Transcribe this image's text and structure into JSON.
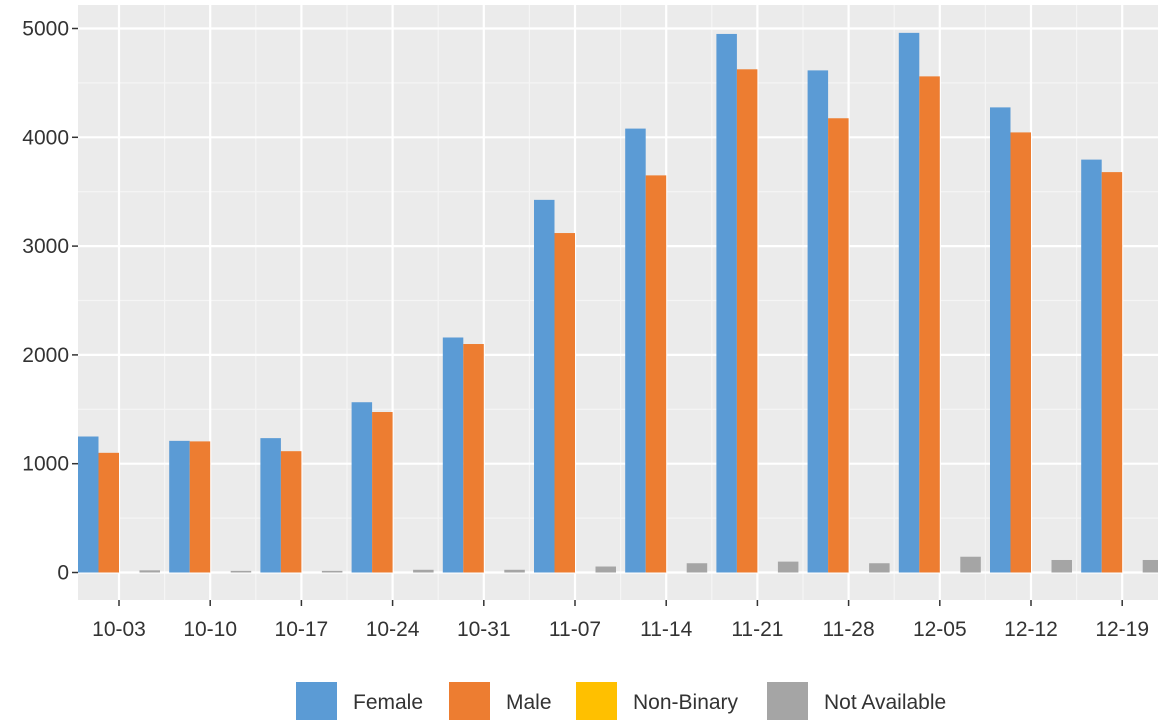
{
  "chart_data": {
    "type": "bar",
    "title": "",
    "xlabel": "",
    "ylabel": "",
    "categories": [
      "10-03",
      "10-10",
      "10-17",
      "10-24",
      "10-31",
      "11-07",
      "11-14",
      "11-21",
      "11-28",
      "12-05",
      "12-12",
      "12-19"
    ],
    "ylim": [
      -150,
      5200
    ],
    "yticks": [
      0,
      1000,
      2000,
      3000,
      4000,
      5000
    ],
    "ytick_labels": [
      "0",
      "1000",
      "2000",
      "3000",
      "4000",
      "5000"
    ],
    "grid": true,
    "legend_position": "bottom",
    "series": [
      {
        "name": "Female",
        "color": "#5B9BD5",
        "values": [
          1250,
          1210,
          1235,
          1565,
          2160,
          3425,
          4080,
          4950,
          4615,
          4960,
          4275,
          3795
        ]
      },
      {
        "name": "Male",
        "color": "#ED7D31",
        "values": [
          1100,
          1205,
          1115,
          1475,
          2100,
          3120,
          3650,
          4625,
          4175,
          4560,
          4045,
          3680
        ]
      },
      {
        "name": "Non-Binary",
        "color": "#FFC000",
        "values": [
          0,
          0,
          0,
          0,
          0,
          0,
          0,
          0,
          0,
          0,
          0,
          0
        ]
      },
      {
        "name": "Not Available",
        "color": "#A5A5A5",
        "values": [
          20,
          15,
          15,
          25,
          25,
          55,
          85,
          100,
          85,
          145,
          115,
          115
        ]
      }
    ]
  }
}
